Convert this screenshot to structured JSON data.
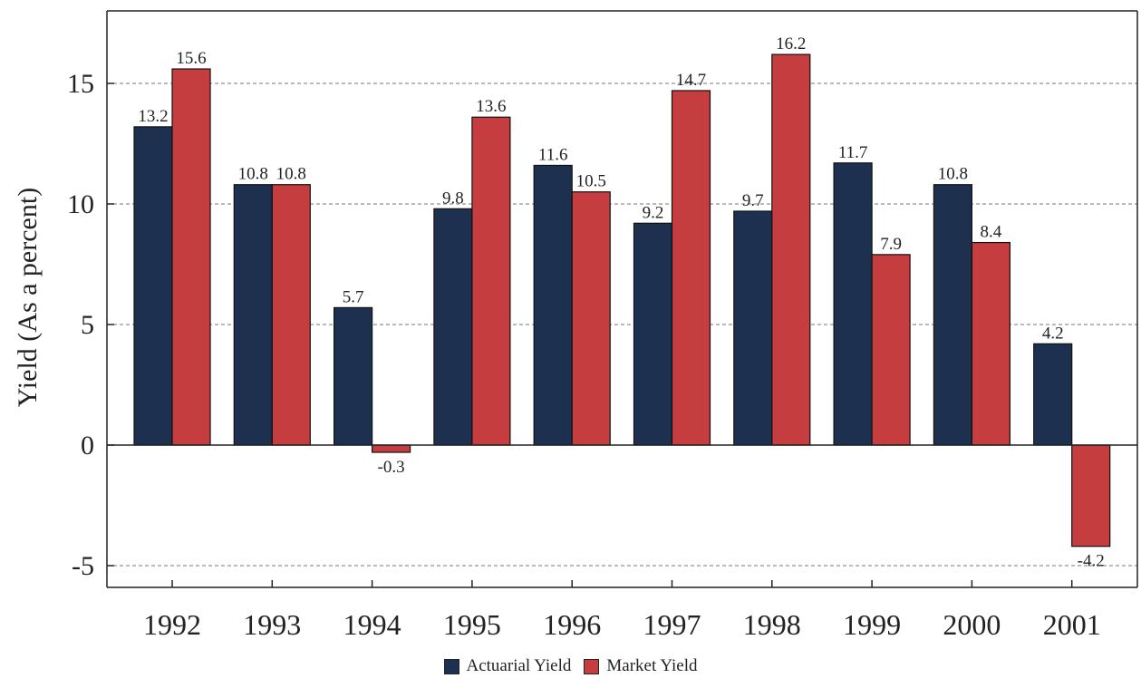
{
  "chart_data": {
    "type": "bar",
    "ylabel": "Yield (As a percent)",
    "categories": [
      "1992",
      "1993",
      "1994",
      "1995",
      "1996",
      "1997",
      "1998",
      "1999",
      "2000",
      "2001"
    ],
    "series": [
      {
        "name": "Actuarial Yield",
        "color": "#1e3050",
        "values": [
          13.2,
          10.8,
          5.7,
          9.8,
          11.6,
          9.2,
          9.7,
          11.7,
          10.8,
          4.2
        ]
      },
      {
        "name": "Market Yield",
        "color": "#c63d3f",
        "values": [
          15.6,
          10.8,
          -0.3,
          13.6,
          10.5,
          14.7,
          16.2,
          7.9,
          8.4,
          -4.2
        ]
      }
    ],
    "data_labels": {
      "actuarial": [
        "13.2",
        "10.8",
        "5.7",
        "9.8",
        "11.6",
        "9.2",
        "9.7",
        "11.7",
        "10.8",
        "4.2"
      ],
      "market": [
        "15.6",
        "10.8",
        "-0.3",
        "13.6",
        "10.5",
        "14.7",
        "16.2",
        "7.9",
        "8.4",
        "-4.2"
      ]
    },
    "yticks": [
      -5,
      0,
      5,
      10,
      15
    ],
    "ytick_labels": [
      "-5",
      "0",
      "5",
      "10",
      "15"
    ],
    "ylim": [
      -6,
      18
    ],
    "grid": "dashed horizontal",
    "legend_position": "bottom"
  }
}
